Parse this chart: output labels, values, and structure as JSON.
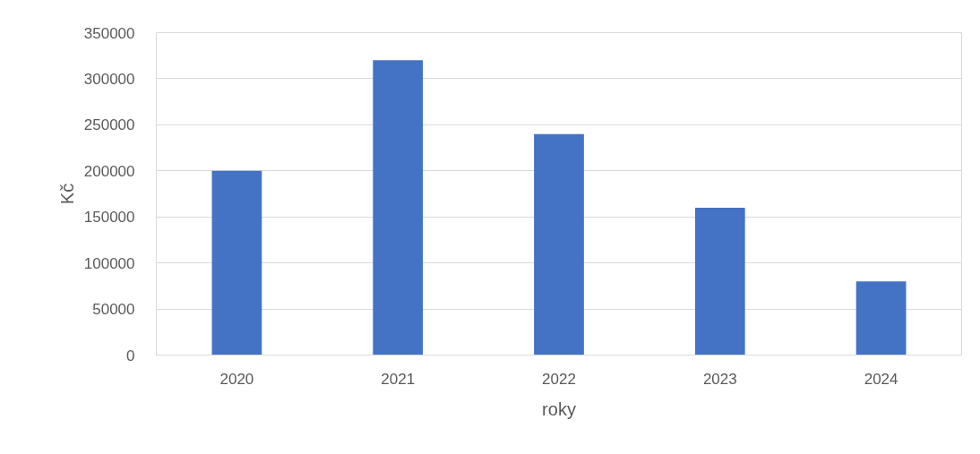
{
  "chart_data": {
    "type": "bar",
    "categories": [
      "2020",
      "2021",
      "2022",
      "2023",
      "2024"
    ],
    "values": [
      200000,
      320000,
      240000,
      160000,
      80000
    ],
    "color": "#4472c4",
    "xlabel": "roky",
    "ylabel": "Kč",
    "ylim": [
      0,
      350000
    ],
    "yticks": [
      0,
      50000,
      100000,
      150000,
      200000,
      250000,
      300000,
      350000
    ],
    "grid": "y"
  }
}
